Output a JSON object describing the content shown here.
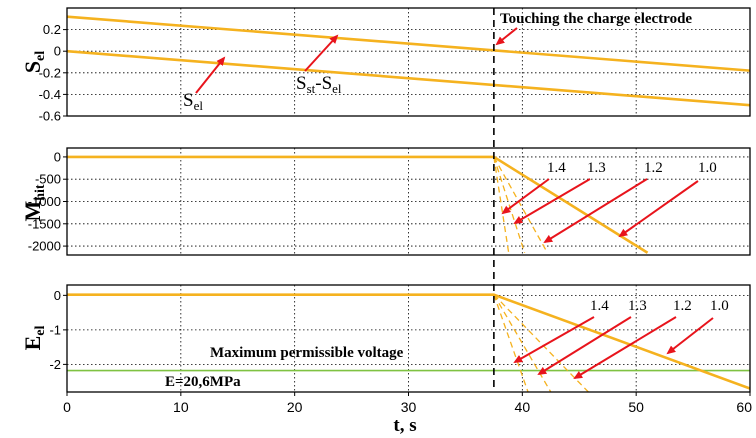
{
  "chart_data": [
    {
      "type": "line",
      "ylabel": "S",
      "ylabel_sub": "el",
      "x_range": [
        0,
        60
      ],
      "y_range": [
        -0.6,
        0.4
      ],
      "yticks": [
        0.2,
        0,
        -0.2,
        -0.4,
        -0.6
      ],
      "ytick_labels": [
        "0.2",
        "0",
        "-0.2",
        "-0.4",
        "-0.6"
      ],
      "grid": true,
      "series": [
        {
          "name_main": "S",
          "name_sub": "st",
          "name_mid": "-S",
          "name_sub2": "el",
          "x": [
            0,
            60
          ],
          "y": [
            0.32,
            -0.18
          ]
        },
        {
          "name_main": "S",
          "name_sub": "el",
          "x": [
            0,
            60
          ],
          "y": [
            0.0,
            -0.5
          ]
        }
      ],
      "annotation": "Touching the charge electrode"
    },
    {
      "type": "line",
      "ylabel": "M",
      "ylabel_sub": "hit",
      "x_range": [
        0,
        60
      ],
      "y_range": [
        -2200,
        200
      ],
      "yticks": [
        0,
        -500,
        -1000,
        -1500,
        -2000
      ],
      "ytick_labels": [
        "0",
        "-500",
        "-1000",
        "-1500",
        "-2000"
      ],
      "grid": true,
      "series": [
        {
          "name": "1.0",
          "x": [
            0,
            37.5,
            51
          ],
          "y": [
            0,
            0,
            -2150
          ]
        },
        {
          "name": "1.2",
          "x": [
            37.5,
            42.2
          ],
          "y": [
            0,
            -2150
          ]
        },
        {
          "name": "1.3",
          "x": [
            37.5,
            40.2
          ],
          "y": [
            0,
            -2150
          ]
        },
        {
          "name": "1.4",
          "x": [
            37.5,
            38.8
          ],
          "y": [
            0,
            -2150
          ]
        }
      ]
    },
    {
      "type": "line",
      "ylabel": "E",
      "ylabel_sub": "el",
      "xlabel": "t, s",
      "x_range": [
        0,
        60
      ],
      "y_range": [
        -2.8,
        0.3
      ],
      "yticks": [
        0,
        -1,
        -2
      ],
      "ytick_labels": [
        "0",
        "-1",
        "-2"
      ],
      "xticks": [
        0,
        10,
        20,
        30,
        40,
        50,
        60
      ],
      "xtick_labels": [
        "0",
        "10",
        "20",
        "30",
        "40",
        "50",
        "60"
      ],
      "grid": true,
      "series": [
        {
          "name": "1.0",
          "x": [
            0,
            37.5,
            60
          ],
          "y": [
            0.02,
            0.02,
            -2.7
          ]
        },
        {
          "name": "1.2",
          "x": [
            37.5,
            45.8
          ],
          "y": [
            0.02,
            -2.8
          ]
        },
        {
          "name": "1.3",
          "x": [
            37.5,
            42.5
          ],
          "y": [
            0.02,
            -2.8
          ]
        },
        {
          "name": "1.4",
          "x": [
            37.5,
            40.5
          ],
          "y": [
            0.02,
            -2.8
          ]
        }
      ],
      "threshold": {
        "value": -2.18,
        "label": "Maximum permissible voltage",
        "value_label": "E=20,6MPa"
      }
    }
  ],
  "colors": {
    "curve": "#f5b21f",
    "arrow": "#e8141c",
    "threshold": "#7fc242",
    "grid": "#000000"
  },
  "event_x": 37.5
}
